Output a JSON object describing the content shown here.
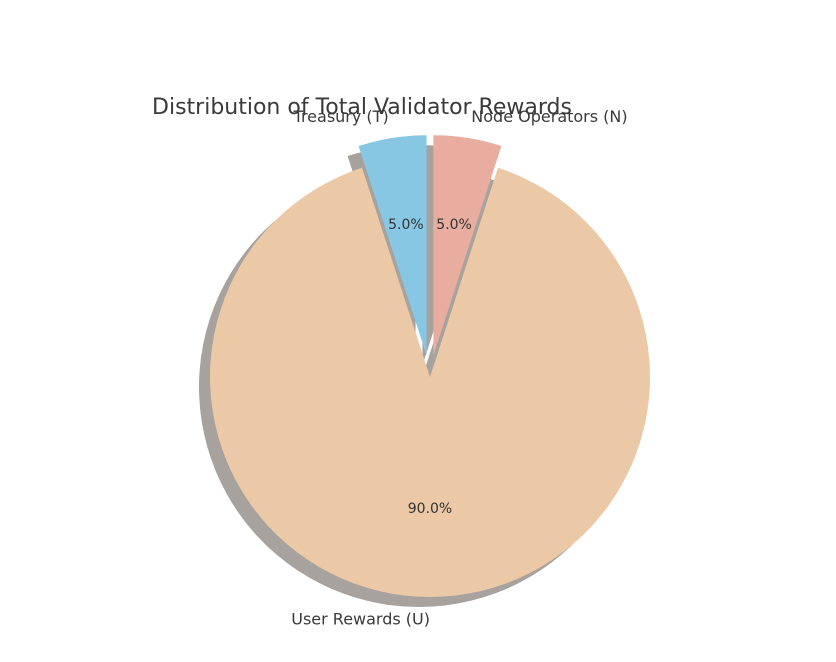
{
  "chart_data": {
    "type": "pie",
    "title": "Distribution of Total Validator Rewards",
    "slices": [
      {
        "label": "User Rewards (U)",
        "value": 90.0,
        "pct_label": "90.0%",
        "color": "#ebc8a6",
        "exploded": false
      },
      {
        "label": "Node Operators (N)",
        "value": 5.0,
        "pct_label": "5.0%",
        "color": "#e9ada0",
        "exploded": true
      },
      {
        "label": "Treasury (T)",
        "value": 5.0,
        "pct_label": "5.0%",
        "color": "#87c7e3",
        "exploded": true
      }
    ],
    "shadow": true,
    "shadow_color": "#a7a29e",
    "start_angle_deg": 108,
    "direction": "counterclockwise"
  }
}
